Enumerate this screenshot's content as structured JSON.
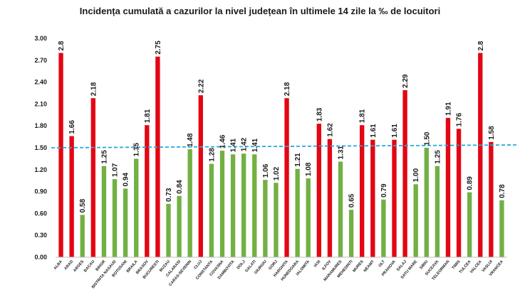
{
  "chart_data": {
    "type": "bar",
    "title": "Incidența cumulată a cazurilor la nivel județean în ultimele 14 zile la ‰ de locuitori",
    "xlabel": "",
    "ylabel": "",
    "ylim": [
      0,
      3.0
    ],
    "yticks": [
      "0.00",
      "0.30",
      "0.60",
      "0.90",
      "1.20",
      "1.50",
      "1.80",
      "2.10",
      "2.40",
      "2.70",
      "3.00"
    ],
    "grid": false,
    "threshold": 1.5,
    "colors": {
      "above": "#e30613",
      "below": "#72b043",
      "threshold": "#2aa7df",
      "axis": "#bfbfbf"
    },
    "categories": [
      "ALBA",
      "ARAD",
      "ARGES",
      "BACAU",
      "BIHOR",
      "BISTRITA NASAUD",
      "BOTOSANI",
      "BRAILA",
      "BRASOV",
      "BUCURESTI",
      "BUZAU",
      "CALARASI",
      "CARAS-SEVERIN",
      "CLUJ",
      "CONSTANTA",
      "COVASNA",
      "DAMBOVITA",
      "DOLJ",
      "GALATI",
      "GIURGIU",
      "GORJ",
      "HARGHITA",
      "HUNEDOARA",
      "IALOMITA",
      "IASI",
      "ILFOV",
      "MARAMURES",
      "MEHEDINTI",
      "MURES",
      "NEAMT",
      "OLT",
      "PRAHOVA",
      "SALAJ",
      "SATU MARE",
      "SIBIU",
      "SUCEAVA",
      "TELEORMAN",
      "TIMIS",
      "TULCEA",
      "VALCEA",
      "VASLUI",
      "VRANCEA"
    ],
    "values": [
      2.8,
      1.66,
      0.58,
      2.18,
      1.25,
      1.07,
      0.94,
      1.35,
      1.81,
      2.75,
      0.73,
      0.84,
      1.48,
      2.22,
      1.28,
      1.46,
      1.41,
      1.42,
      1.41,
      1.06,
      1.02,
      2.18,
      1.21,
      1.08,
      1.83,
      1.62,
      1.31,
      0.65,
      1.81,
      1.61,
      0.79,
      1.61,
      2.29,
      1.0,
      1.5,
      1.25,
      1.91,
      1.76,
      0.89,
      2.8,
      1.58,
      0.78
    ],
    "labels": [
      "2.8",
      "1.66",
      "0.58",
      "2.18",
      "1.25",
      "1.07",
      "0.94",
      "1.35",
      "1.81",
      "2.75",
      "0.73",
      "0.84",
      "1.48",
      "2.22",
      "1.28",
      "1.46",
      "1.41",
      "1.42",
      "1.41",
      "1.06",
      "1.02",
      "2.18",
      "1.21",
      "1.08",
      "1.83",
      "1.62",
      "1.31",
      "0.65",
      "1.81",
      "1.61",
      "0.79",
      "1.61",
      "2.29",
      "1.00",
      "1.50",
      "1.25",
      "1.91",
      "1.76",
      "0.89",
      "2.8",
      "1.58",
      "0.78"
    ]
  }
}
